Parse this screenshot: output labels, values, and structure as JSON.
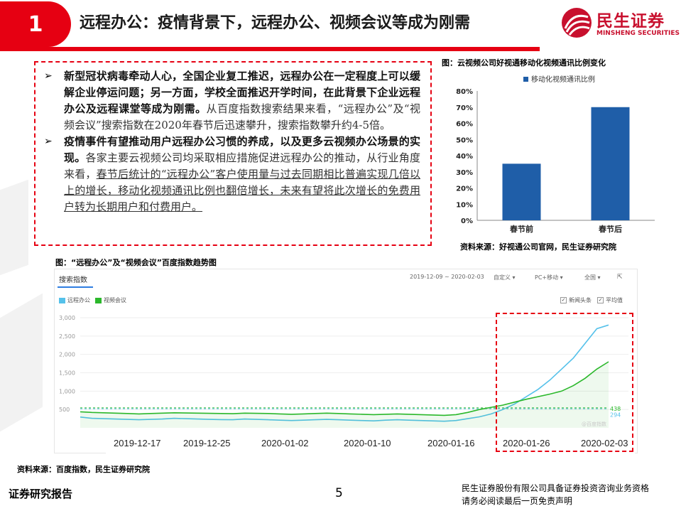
{
  "header": {
    "section_number": "1",
    "title": "远程办公：疫情背景下，远程办公、视频会议等成为刚需",
    "logo_cn": "民生证券",
    "logo_en": "MINSHENG SECURITIES"
  },
  "textbox": {
    "p1_bold": "新型冠状病毒牵动人心，全国企业复工推迟，远程办公在一定程度上可以缓解企业停运问题；另一方面，学校全面推迟开学时间，在此背景下企业远程办公及远程课堂等成为刚需。",
    "p1_normal": "从百度指数搜索结果来看，“远程办公”及“视频会议”搜索指数在2020年春节后迅速攀升，搜索指数攀升约4-5倍。",
    "p2_bold": "疫情事件有望推动用户远程办公习惯的养成，以及更多云视频办公场景的实现。",
    "p2_normal_a": "各家主要云视频公司均采取相应措施促进远程办公的推动，从行业角度来看，",
    "p2_underline": "春节后统计的“远程办公”客户使用量与过去同期相比普遍实现几倍以上的增长，移动化视频通讯比例也翻倍增长，未来有望将此次增长的免费用户转为长期用户和付费用户。"
  },
  "bar_chart": {
    "caption": "图：云视频公司好视通移动化视频通讯比例变化",
    "source": "资料来源：好视通公司官网，民生证券研究院",
    "bar_color": "#1f5ea8"
  },
  "index_chart": {
    "caption": "图：“远程办公”及“视频会议”百度指数趋势图",
    "panel_label": "搜索指数",
    "date_range": "2019-12-09 ~ 2020-02-03",
    "ctrl_custom": "自定义",
    "ctrl_device": "PC+移动",
    "ctrl_region": "全国",
    "legend_news": "新闻头条",
    "legend_avg": "平均值",
    "watermark": "@百度指数",
    "end_label_green": "438",
    "end_label_blue": "294",
    "series_colors": {
      "remote": "#55c1ea",
      "video": "#2bb82b"
    },
    "source": "资料来源：百度指数，民生证券研究院",
    "date_labels": [
      "2019-12-17",
      "2019-12-25",
      "2020-01-02",
      "2020-01-10",
      "2020-01-16",
      "2020-01-26",
      "2020-02-03"
    ]
  },
  "footer": {
    "left": "证券研究报告",
    "page": "5",
    "right_line1": "民生证券股份有限公司具备证券投资咨询业务资格",
    "right_line2": "请务必阅读最后一页免责声明"
  },
  "chart_data": [
    {
      "type": "bar",
      "title": "",
      "series": [
        {
          "name": "移动化视频通讯比例",
          "values": [
            35,
            70
          ]
        }
      ],
      "categories": [
        "春节前",
        "春节后"
      ],
      "yticks": [
        "0%",
        "10%",
        "20%",
        "30%",
        "40%",
        "50%",
        "60%",
        "70%",
        "80%"
      ],
      "ylim": [
        0,
        80
      ],
      "legend": "top-center",
      "grid": false
    },
    {
      "type": "line",
      "title": "",
      "series": [
        {
          "name": "远程办公",
          "values": [
            294,
            260,
            250,
            240,
            230,
            220,
            230,
            240,
            260,
            250,
            240,
            230,
            225,
            220,
            240,
            230,
            220,
            210,
            200,
            210,
            220,
            230,
            220,
            210,
            200,
            190,
            210,
            220,
            210,
            200,
            190,
            180,
            200,
            250,
            300,
            380,
            500,
            650,
            850,
            1050,
            1300,
            1600,
            1900,
            2300,
            2700,
            2800
          ]
        },
        {
          "name": "视频会议",
          "values": [
            438,
            420,
            410,
            400,
            390,
            380,
            390,
            400,
            410,
            405,
            400,
            395,
            390,
            385,
            400,
            395,
            390,
            380,
            370,
            380,
            390,
            400,
            390,
            380,
            370,
            360,
            370,
            380,
            370,
            360,
            350,
            340,
            360,
            420,
            500,
            560,
            620,
            700,
            780,
            850,
            920,
            1000,
            1150,
            1350,
            1600,
            1800
          ]
        }
      ],
      "yticks": [
        "500",
        "1,000",
        "1,500",
        "2,000",
        "2,500",
        "3,000"
      ],
      "ylim": [
        0,
        3000
      ],
      "x_range": [
        "2019-12-09",
        "2020-02-03"
      ],
      "legend": "top-left",
      "grid": true
    }
  ]
}
